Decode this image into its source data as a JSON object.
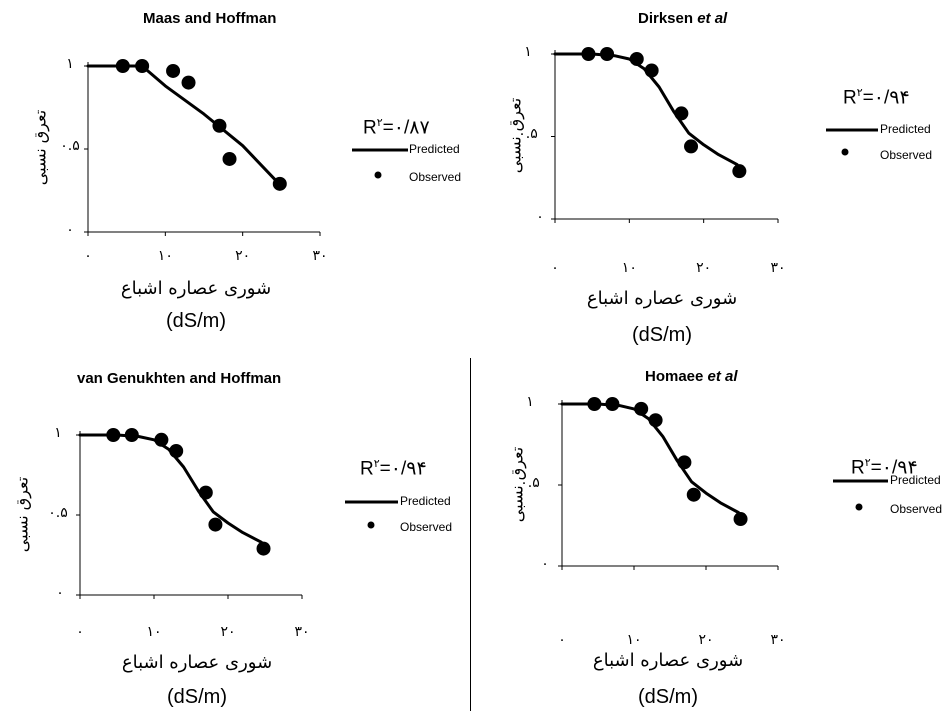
{
  "panels": [
    {
      "title": "Maas and Hoffman",
      "title_italic": "",
      "ylabel": "تعرق نسبی",
      "xlabel": "شوری عصاره اشباع",
      "xunit": "(dS/m)",
      "r2": "R²=۰/۸۷",
      "r2_base": "R",
      "r2_sup": "۲",
      "r2_value": "=۰/۸۷",
      "legend": [
        "Predicted",
        "Observed"
      ],
      "x_ticks": [
        "۰",
        "۱۰",
        "۲۰",
        "۳۰"
      ],
      "y_ticks": [
        "۰",
        "۰.۵",
        "۱"
      ]
    },
    {
      "title": "Dirksen ",
      "title_italic": "et al",
      "ylabel": "تعرق نسبی",
      "xlabel": "شوری عصاره اشباع",
      "xunit": "(dS/m)",
      "r2": "R²=۰/۹۴",
      "r2_base": "R",
      "r2_sup": "۲",
      "r2_value": "=۰/۹۴",
      "legend": [
        "Predicted",
        "Observed"
      ],
      "x_ticks": [
        "۰",
        "۱۰",
        "۲۰",
        "۳۰"
      ],
      "y_ticks": [
        "۰",
        "۰.۵",
        "۱"
      ]
    },
    {
      "title": "van Genukhten and Hoffman",
      "title_italic": "",
      "ylabel": "تعرق نسبی",
      "xlabel": "شوری عصاره اشباع",
      "xunit": "(dS/m)",
      "r2": "R²=۰/۹۴",
      "r2_base": "R",
      "r2_sup": "۲",
      "r2_value": "=۰/۹۴",
      "legend": [
        "Predicted",
        "Observed"
      ],
      "x_ticks": [
        "۰",
        "۱۰",
        "۲۰",
        "۳۰"
      ],
      "y_ticks": [
        "۰",
        "۰.۵",
        "۱"
      ]
    },
    {
      "title": "Homaee ",
      "title_italic": "et al",
      "ylabel": "تعرق نسبی",
      "xlabel": "شوری عصاره اشباع",
      "xunit": "(dS/m)",
      "r2": "R²=۰/۹۴",
      "r2_base": "R",
      "r2_sup": "۲",
      "r2_value": "=۰/۹۴",
      "legend": [
        "Predicted",
        "Observed"
      ],
      "x_ticks": [
        "۰",
        "۱۰",
        "۲۰",
        "۳۰"
      ],
      "y_ticks": [
        "۰",
        "۰.۵",
        "۱"
      ]
    }
  ],
  "chart_data": [
    {
      "type": "scatter",
      "title": "Maas and Hoffman",
      "xlabel": "شوری عصاره اشباع (dS/m)",
      "ylabel": "تعرق نسبی",
      "xlim": [
        0,
        30
      ],
      "ylim": [
        0,
        1
      ],
      "series": [
        {
          "name": "Predicted",
          "kind": "line",
          "x": [
            0,
            4.5,
            7,
            10,
            15,
            20,
            24.5
          ],
          "y": [
            1.0,
            1.0,
            1.0,
            0.88,
            0.71,
            0.52,
            0.3
          ]
        },
        {
          "name": "Observed",
          "kind": "scatter",
          "x": [
            4.5,
            7,
            11,
            13,
            17,
            18.3,
            24.8
          ],
          "y": [
            1.0,
            1.0,
            0.97,
            0.9,
            0.64,
            0.44,
            0.29
          ]
        }
      ],
      "r2": 0.87
    },
    {
      "type": "scatter",
      "title": "Dirksen et al",
      "xlabel": "شوری عصاره اشباع (dS/m)",
      "ylabel": "تعرق نسبی",
      "xlim": [
        0,
        30
      ],
      "ylim": [
        0,
        1
      ],
      "series": [
        {
          "name": "Predicted",
          "kind": "line",
          "x": [
            0,
            5,
            8,
            10,
            12,
            14,
            16,
            18,
            20,
            22,
            24.5
          ],
          "y": [
            1.0,
            1.0,
            0.99,
            0.97,
            0.91,
            0.8,
            0.65,
            0.52,
            0.45,
            0.39,
            0.33
          ]
        },
        {
          "name": "Observed",
          "kind": "scatter",
          "x": [
            4.5,
            7,
            11,
            13,
            17,
            18.3,
            24.8
          ],
          "y": [
            1.0,
            1.0,
            0.97,
            0.9,
            0.64,
            0.44,
            0.29
          ]
        }
      ],
      "r2": 0.94
    },
    {
      "type": "scatter",
      "title": "van Genukhten and Hoffman",
      "xlabel": "شوری عصاره اشباع (dS/m)",
      "ylabel": "تعرق نسبی",
      "xlim": [
        0,
        30
      ],
      "ylim": [
        0,
        1
      ],
      "series": [
        {
          "name": "Predicted",
          "kind": "line",
          "x": [
            0,
            5,
            8,
            10,
            12,
            14,
            16,
            18,
            20,
            22,
            24.5
          ],
          "y": [
            1.0,
            1.0,
            0.99,
            0.97,
            0.91,
            0.8,
            0.65,
            0.52,
            0.45,
            0.39,
            0.33
          ]
        },
        {
          "name": "Observed",
          "kind": "scatter",
          "x": [
            4.5,
            7,
            11,
            13,
            17,
            18.3,
            24.8
          ],
          "y": [
            1.0,
            1.0,
            0.97,
            0.9,
            0.64,
            0.44,
            0.29
          ]
        }
      ],
      "r2": 0.94
    },
    {
      "type": "scatter",
      "title": "Homaee et al",
      "xlabel": "شوری عصاره اشباع (dS/m)",
      "ylabel": "تعرق نسبی",
      "xlim": [
        0,
        30
      ],
      "ylim": [
        0,
        1
      ],
      "series": [
        {
          "name": "Predicted",
          "kind": "line",
          "x": [
            0,
            5,
            8,
            10,
            12,
            14,
            16,
            18,
            20,
            22,
            24.5
          ],
          "y": [
            1.0,
            1.0,
            0.99,
            0.97,
            0.91,
            0.8,
            0.65,
            0.52,
            0.45,
            0.39,
            0.33
          ]
        },
        {
          "name": "Observed",
          "kind": "scatter",
          "x": [
            4.5,
            7,
            11,
            13,
            17,
            18.3,
            24.8
          ],
          "y": [
            1.0,
            1.0,
            0.97,
            0.9,
            0.64,
            0.44,
            0.29
          ]
        }
      ],
      "r2": 0.94
    }
  ]
}
